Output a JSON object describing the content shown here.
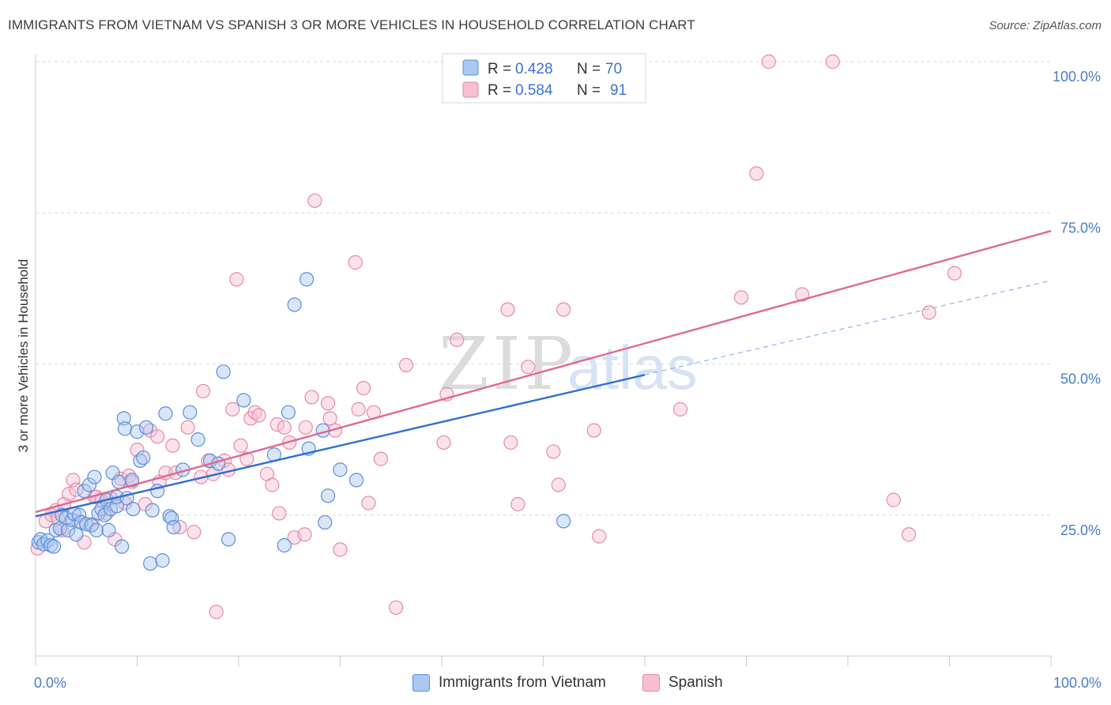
{
  "title": "IMMIGRANTS FROM VIETNAM VS SPANISH 3 OR MORE VEHICLES IN HOUSEHOLD CORRELATION CHART",
  "source": "Source: ZipAtlas.com",
  "watermark": {
    "zip": "ZIP",
    "atlas": "atlas"
  },
  "colors": {
    "blue_stroke": "#5b8fd9",
    "blue_fill": "#aac8f0",
    "blue_line": "#2f6fcf",
    "pink_stroke": "#e68aa8",
    "pink_fill": "#f6bfd2",
    "pink_line": "#e06892",
    "tick_label": "#4a7cc9",
    "grid": "#d9d9d9"
  },
  "legend_top": {
    "rows": [
      {
        "r_label": "R =",
        "r_value": "0.428",
        "n_label": "N =",
        "n_value": "70"
      },
      {
        "r_label": "R =",
        "r_value": "0.584",
        "n_label": "N =",
        "n_value": "91"
      }
    ]
  },
  "legend_bottom": {
    "blue": "Immigrants from Vietnam",
    "pink": "Spanish"
  },
  "chart_data": {
    "type": "scatter",
    "title": "IMMIGRANTS FROM VIETNAM VS SPANISH 3 OR MORE VEHICLES IN HOUSEHOLD CORRELATION CHART",
    "xlabel": "",
    "ylabel": "3 or more Vehicles in Household",
    "xlim": [
      0,
      100
    ],
    "ylim": [
      0,
      100
    ],
    "x_tick_labels": [
      "0.0%",
      "100.0%"
    ],
    "y_ticks": [
      25,
      50,
      75,
      100
    ],
    "y_tick_labels": [
      "25.0%",
      "50.0%",
      "75.0%",
      "100.0%"
    ],
    "grid": true,
    "legend_position": "top-center",
    "series": [
      {
        "name": "Immigrants from Vietnam",
        "r": 0.428,
        "n": 70,
        "trend": {
          "x0": 0,
          "y0": 24.8,
          "x1": 60,
          "y1": 48.2,
          "dashed_to_x": 100,
          "dashed_to_y": 63.8
        },
        "points": [
          [
            0.3,
            20.5
          ],
          [
            0.5,
            21
          ],
          [
            0.8,
            20.2
          ],
          [
            1.2,
            20.8
          ],
          [
            1.5,
            20
          ],
          [
            1.8,
            19.8
          ],
          [
            2,
            22.5
          ],
          [
            2.4,
            22.8
          ],
          [
            2.6,
            25
          ],
          [
            3,
            24.5
          ],
          [
            3.2,
            22.5
          ],
          [
            3.6,
            24.2
          ],
          [
            3.8,
            25.2
          ],
          [
            4,
            21.8
          ],
          [
            4.3,
            25
          ],
          [
            4.5,
            23.8
          ],
          [
            4.8,
            29
          ],
          [
            5,
            23.5
          ],
          [
            5.3,
            30
          ],
          [
            5.5,
            23.3
          ],
          [
            5.8,
            31.3
          ],
          [
            6,
            22.5
          ],
          [
            6.2,
            25.3
          ],
          [
            6.5,
            26
          ],
          [
            6.8,
            25
          ],
          [
            7,
            27.5
          ],
          [
            7.2,
            22.5
          ],
          [
            7.4,
            26
          ],
          [
            7.6,
            32
          ],
          [
            8,
            26.5
          ],
          [
            8,
            28
          ],
          [
            8.2,
            30.5
          ],
          [
            8.5,
            19.8
          ],
          [
            8.7,
            41
          ],
          [
            8.8,
            39.3
          ],
          [
            9,
            27.8
          ],
          [
            9.5,
            30.8
          ],
          [
            9.6,
            26
          ],
          [
            10,
            38.8
          ],
          [
            10.3,
            34
          ],
          [
            10.6,
            34.5
          ],
          [
            10.9,
            39.5
          ],
          [
            11.3,
            17
          ],
          [
            11.5,
            25.8
          ],
          [
            12,
            29
          ],
          [
            12.5,
            17.5
          ],
          [
            12.8,
            41.8
          ],
          [
            13.2,
            24.8
          ],
          [
            13.4,
            24.5
          ],
          [
            13.6,
            23
          ],
          [
            14.5,
            32.5
          ],
          [
            15.2,
            42
          ],
          [
            16,
            37.5
          ],
          [
            17.2,
            34
          ],
          [
            18,
            33.5
          ],
          [
            18.5,
            48.7
          ],
          [
            19,
            21
          ],
          [
            20.5,
            44
          ],
          [
            23.5,
            35
          ],
          [
            24.5,
            20
          ],
          [
            24.9,
            42
          ],
          [
            25.5,
            59.8
          ],
          [
            26.7,
            64
          ],
          [
            26.9,
            36
          ],
          [
            28.3,
            39
          ],
          [
            28.5,
            23.8
          ],
          [
            28.8,
            28.2
          ],
          [
            30,
            32.5
          ],
          [
            31.6,
            30.8
          ],
          [
            52,
            24
          ]
        ]
      },
      {
        "name": "Spanish",
        "r": 0.584,
        "n": 91,
        "trend": {
          "x0": 0,
          "y0": 25.5,
          "x1": 100,
          "y1": 72
        },
        "points": [
          [
            0.2,
            19.5
          ],
          [
            1,
            24
          ],
          [
            1.6,
            25
          ],
          [
            2,
            25.8
          ],
          [
            2.2,
            24.5
          ],
          [
            2.6,
            22.5
          ],
          [
            2.8,
            26.8
          ],
          [
            3.3,
            28.5
          ],
          [
            3.7,
            30.8
          ],
          [
            4,
            29.2
          ],
          [
            4.3,
            24
          ],
          [
            4.8,
            20.5
          ],
          [
            5.6,
            23.5
          ],
          [
            5.8,
            28
          ],
          [
            6,
            28
          ],
          [
            6.5,
            27.5
          ],
          [
            7,
            25.3
          ],
          [
            7.4,
            27.8
          ],
          [
            7.8,
            21
          ],
          [
            8.4,
            31
          ],
          [
            8.8,
            27
          ],
          [
            9.2,
            31.5
          ],
          [
            9.5,
            30.5
          ],
          [
            10,
            35.8
          ],
          [
            10.8,
            26.8
          ],
          [
            11.3,
            39
          ],
          [
            12,
            38
          ],
          [
            12.2,
            30.5
          ],
          [
            12.8,
            32
          ],
          [
            13.5,
            36.5
          ],
          [
            13.8,
            32
          ],
          [
            14.2,
            23
          ],
          [
            15,
            39.5
          ],
          [
            15.6,
            22.2
          ],
          [
            16.3,
            31.3
          ],
          [
            16.5,
            45.5
          ],
          [
            17,
            34
          ],
          [
            17.5,
            31.8
          ],
          [
            17.8,
            9
          ],
          [
            18.6,
            34
          ],
          [
            19,
            32.5
          ],
          [
            19.4,
            42.5
          ],
          [
            19.8,
            64
          ],
          [
            20.2,
            36.5
          ],
          [
            20.8,
            34.3
          ],
          [
            21.2,
            41
          ],
          [
            21.6,
            42
          ],
          [
            22,
            41.5
          ],
          [
            22.8,
            31.8
          ],
          [
            23.3,
            30
          ],
          [
            23.8,
            40
          ],
          [
            24,
            25.3
          ],
          [
            24.5,
            39.5
          ],
          [
            25,
            37
          ],
          [
            25.5,
            21.3
          ],
          [
            26.5,
            21.8
          ],
          [
            26.6,
            39.5
          ],
          [
            27.2,
            44.5
          ],
          [
            27.5,
            77
          ],
          [
            28.8,
            43.5
          ],
          [
            29,
            41
          ],
          [
            29.5,
            39
          ],
          [
            30,
            19.3
          ],
          [
            31.5,
            66.8
          ],
          [
            31.8,
            42.5
          ],
          [
            32.3,
            46
          ],
          [
            32.8,
            27
          ],
          [
            33.3,
            42
          ],
          [
            34,
            34.3
          ],
          [
            35.5,
            9.7
          ],
          [
            36.5,
            49.8
          ],
          [
            40.5,
            45
          ],
          [
            40.2,
            37
          ],
          [
            41.5,
            54
          ],
          [
            46.5,
            59
          ],
          [
            46.8,
            37
          ],
          [
            47.5,
            26.8
          ],
          [
            48.5,
            49.5
          ],
          [
            51,
            35.5
          ],
          [
            51.5,
            30
          ],
          [
            52,
            59
          ],
          [
            55,
            39
          ],
          [
            55.5,
            21.5
          ],
          [
            63.5,
            42.5
          ],
          [
            69.5,
            61
          ],
          [
            71,
            81.5
          ],
          [
            72.2,
            100
          ],
          [
            75.5,
            61.5
          ],
          [
            78.5,
            100
          ],
          [
            84.5,
            27.5
          ],
          [
            86,
            21.8
          ],
          [
            88,
            58.5
          ],
          [
            90.5,
            65
          ]
        ]
      }
    ]
  }
}
